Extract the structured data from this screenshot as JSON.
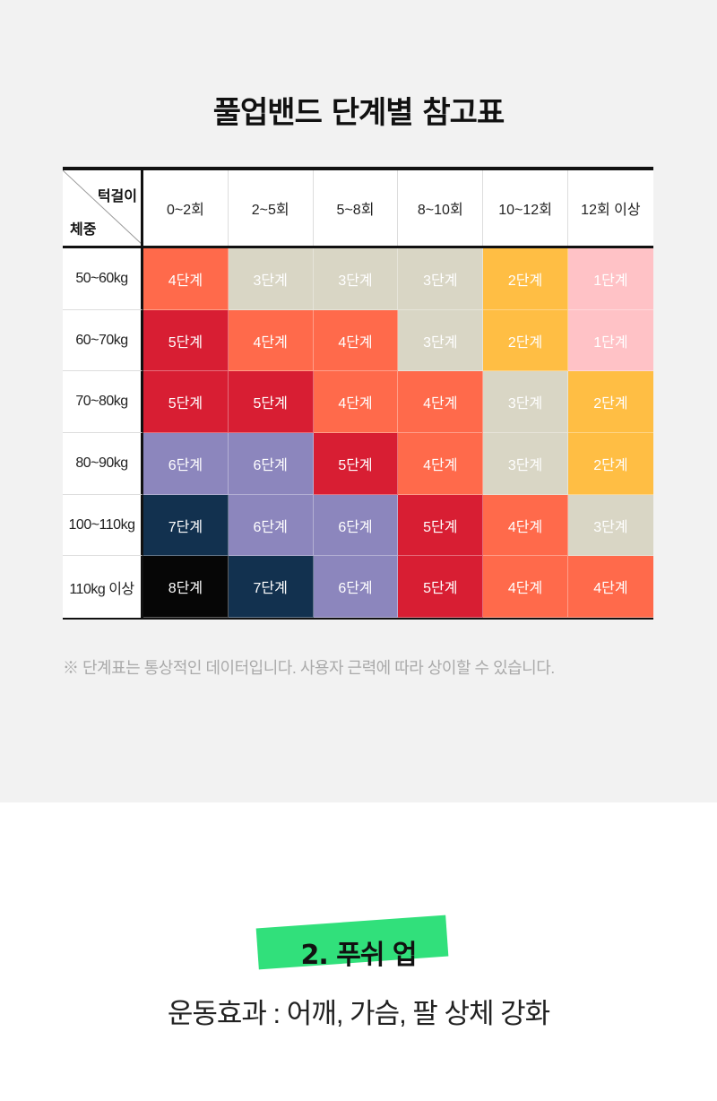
{
  "title": "풀업밴드 단계별 참고표",
  "table": {
    "corner_top": "턱걸이",
    "corner_bottom": "체중",
    "columns": [
      "0~2회",
      "2~5회",
      "5~8회",
      "8~10회",
      "10~12회",
      "12회 이상"
    ],
    "rows": [
      {
        "label": "50~60kg",
        "cells": [
          "4단계",
          "3단계",
          "3단계",
          "3단계",
          "2단계",
          "1단계"
        ]
      },
      {
        "label": "60~70kg",
        "cells": [
          "5단계",
          "4단계",
          "4단계",
          "3단계",
          "2단계",
          "1단계"
        ]
      },
      {
        "label": "70~80kg",
        "cells": [
          "5단계",
          "5단계",
          "4단계",
          "4단계",
          "3단계",
          "2단계"
        ]
      },
      {
        "label": "80~90kg",
        "cells": [
          "6단계",
          "6단계",
          "5단계",
          "4단계",
          "3단계",
          "2단계"
        ]
      },
      {
        "label": "100~110kg",
        "cells": [
          "7단계",
          "6단계",
          "6단계",
          "5단계",
          "4단계",
          "3단계"
        ]
      },
      {
        "label": "110kg 이상",
        "cells": [
          "8단계",
          "7단계",
          "6단계",
          "5단계",
          "4단계",
          "4단계"
        ]
      }
    ],
    "level_colors": {
      "1단계": "#ffc2c6",
      "2단계": "#ffbe44",
      "3단계": "#d9d6c5",
      "4단계": "#ff6a4b",
      "5단계": "#d81e33",
      "6단계": "#8c86bd",
      "7단계": "#12314f",
      "8단계": "#060606"
    }
  },
  "note": "※ 단계표는 통상적인 데이터입니다. 사용자 근력에 따라 상이할 수 있습니다.",
  "section": {
    "title": "2. 푸쉬 업",
    "subtitle": "운동효과 : 어깨, 가슴, 팔 상체 강화",
    "badge_color": "#31e07b"
  }
}
